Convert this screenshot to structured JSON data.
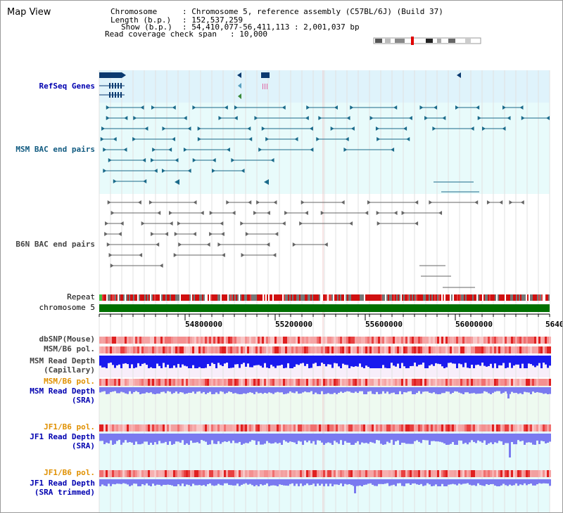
{
  "title": "Map View",
  "info": {
    "chromosome_label": "Chromosome",
    "chromosome_value": ": Chromosome 5, reference assembly (C57BL/6J) (Build 37)",
    "length_label": "Length (b.p.)",
    "length_value": ": 152,537,259",
    "show_label": "Show (b.p.)",
    "show_value": ": 54,410,077-56,411,113 : 2,001,037 bp",
    "span_label": "Read coverage check span",
    "span_value": ": 10,000"
  },
  "tracks": {
    "refseq": "RefSeq Genes",
    "msm_bac": "MSM BAC end pairs",
    "b6n_bac": "B6N BAC end pairs",
    "repeat": "Repeat",
    "chromosome": "chromosome 5",
    "dbsnp": "dbSNP(Mouse)",
    "msm_b6_pol": "MSM/B6 pol.",
    "msm_depth_cap_1": "MSM Read Depth",
    "msm_depth_cap_2": "(Capillary)",
    "msm_b6_pol2": "MSM/B6 pol.",
    "msm_depth_sra_1": "MSM Read Depth",
    "msm_depth_sra_2": "(SRA)",
    "jf1_b6_pol": "JF1/B6 pol.",
    "jf1_depth_sra_1": "JF1 Read Depth",
    "jf1_depth_sra_2": "(SRA)",
    "jf1_b6_pol2": "JF1/B6 pol.",
    "jf1_depth_trim_1": "JF1 Read Depth",
    "jf1_depth_trim_2": "(SRA trimmed)"
  },
  "axis_ticks": [
    "54800000",
    "55200000",
    "55600000",
    "56000000",
    "5640"
  ],
  "colors": {
    "refseq_bg": "#dff3fb",
    "bac_bg": "#e8fbfb",
    "chromosome_bar": "#007000",
    "depth_blue": "#1a1aee",
    "depth_light": "#7a7af0",
    "pol_red": "#e83030",
    "label_blue": "#0000b0",
    "label_orange": "#e09000"
  }
}
